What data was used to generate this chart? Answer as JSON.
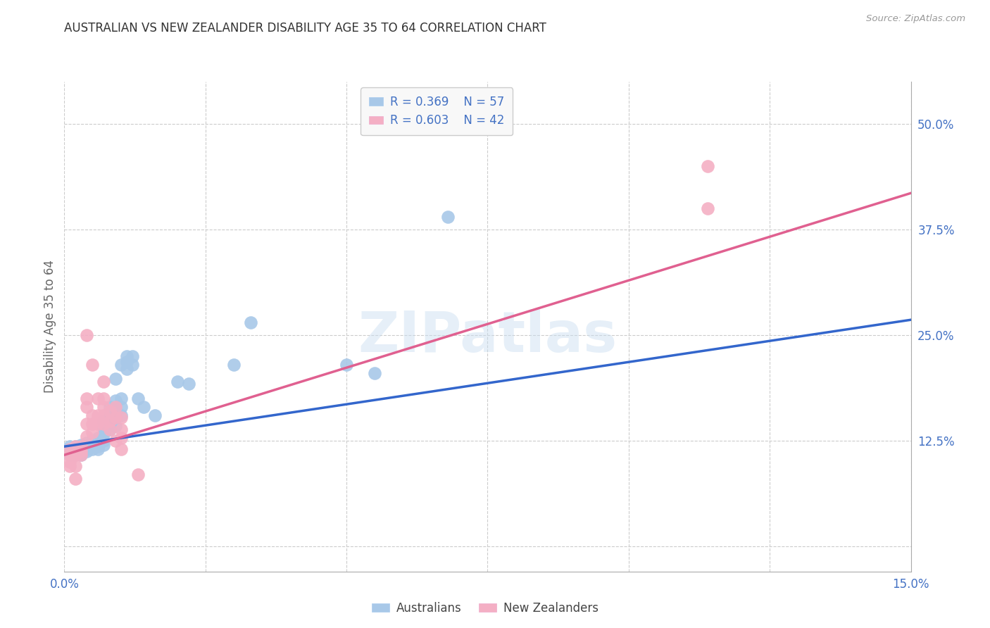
{
  "title": "AUSTRALIAN VS NEW ZEALANDER DISABILITY AGE 35 TO 64 CORRELATION CHART",
  "source": "Source: ZipAtlas.com",
  "ylabel": "Disability Age 35 to 64",
  "xlim": [
    0.0,
    0.15
  ],
  "ylim": [
    -0.03,
    0.55
  ],
  "xticks": [
    0.0,
    0.025,
    0.05,
    0.075,
    0.1,
    0.125,
    0.15
  ],
  "xtick_labels": [
    "0.0%",
    "",
    "",
    "",
    "",
    "",
    "15.0%"
  ],
  "yticks": [
    0.0,
    0.125,
    0.25,
    0.375,
    0.5
  ],
  "ytick_labels": [
    "",
    "12.5%",
    "25.0%",
    "37.5%",
    "50.0%"
  ],
  "legend1_r": "0.369",
  "legend1_n": "57",
  "legend2_r": "0.603",
  "legend2_n": "42",
  "blue_color": "#a8c8e8",
  "pink_color": "#f4afc4",
  "blue_line_color": "#3366cc",
  "pink_line_color": "#e06090",
  "background_color": "#ffffff",
  "grid_color": "#cccccc",
  "title_color": "#333333",
  "axis_label_color": "#4472c4",
  "blue_scatter": [
    [
      0.001,
      0.118
    ],
    [
      0.001,
      0.115
    ],
    [
      0.001,
      0.112
    ],
    [
      0.001,
      0.108
    ],
    [
      0.002,
      0.118
    ],
    [
      0.002,
      0.115
    ],
    [
      0.002,
      0.112
    ],
    [
      0.002,
      0.108
    ],
    [
      0.003,
      0.12
    ],
    [
      0.003,
      0.115
    ],
    [
      0.003,
      0.11
    ],
    [
      0.003,
      0.108
    ],
    [
      0.004,
      0.122
    ],
    [
      0.004,
      0.118
    ],
    [
      0.004,
      0.115
    ],
    [
      0.004,
      0.112
    ],
    [
      0.005,
      0.125
    ],
    [
      0.005,
      0.12
    ],
    [
      0.005,
      0.118
    ],
    [
      0.005,
      0.115
    ],
    [
      0.006,
      0.128
    ],
    [
      0.006,
      0.122
    ],
    [
      0.006,
      0.118
    ],
    [
      0.006,
      0.115
    ],
    [
      0.007,
      0.148
    ],
    [
      0.007,
      0.14
    ],
    [
      0.007,
      0.132
    ],
    [
      0.007,
      0.125
    ],
    [
      0.007,
      0.12
    ],
    [
      0.008,
      0.165
    ],
    [
      0.008,
      0.155
    ],
    [
      0.008,
      0.145
    ],
    [
      0.008,
      0.138
    ],
    [
      0.009,
      0.172
    ],
    [
      0.009,
      0.162
    ],
    [
      0.009,
      0.152
    ],
    [
      0.009,
      0.142
    ],
    [
      0.009,
      0.198
    ],
    [
      0.01,
      0.175
    ],
    [
      0.01,
      0.165
    ],
    [
      0.01,
      0.155
    ],
    [
      0.01,
      0.215
    ],
    [
      0.011,
      0.225
    ],
    [
      0.011,
      0.218
    ],
    [
      0.011,
      0.21
    ],
    [
      0.012,
      0.225
    ],
    [
      0.012,
      0.215
    ],
    [
      0.013,
      0.175
    ],
    [
      0.014,
      0.165
    ],
    [
      0.016,
      0.155
    ],
    [
      0.02,
      0.195
    ],
    [
      0.022,
      0.192
    ],
    [
      0.03,
      0.215
    ],
    [
      0.033,
      0.265
    ],
    [
      0.05,
      0.215
    ],
    [
      0.055,
      0.205
    ],
    [
      0.068,
      0.39
    ]
  ],
  "pink_scatter": [
    [
      0.001,
      0.115
    ],
    [
      0.001,
      0.108
    ],
    [
      0.001,
      0.1
    ],
    [
      0.001,
      0.095
    ],
    [
      0.002,
      0.118
    ],
    [
      0.002,
      0.112
    ],
    [
      0.002,
      0.108
    ],
    [
      0.002,
      0.095
    ],
    [
      0.002,
      0.08
    ],
    [
      0.003,
      0.118
    ],
    [
      0.003,
      0.112
    ],
    [
      0.003,
      0.108
    ],
    [
      0.004,
      0.25
    ],
    [
      0.004,
      0.175
    ],
    [
      0.004,
      0.165
    ],
    [
      0.004,
      0.145
    ],
    [
      0.004,
      0.13
    ],
    [
      0.005,
      0.215
    ],
    [
      0.005,
      0.155
    ],
    [
      0.005,
      0.145
    ],
    [
      0.005,
      0.135
    ],
    [
      0.006,
      0.175
    ],
    [
      0.006,
      0.155
    ],
    [
      0.006,
      0.145
    ],
    [
      0.007,
      0.195
    ],
    [
      0.007,
      0.175
    ],
    [
      0.007,
      0.165
    ],
    [
      0.007,
      0.155
    ],
    [
      0.007,
      0.145
    ],
    [
      0.008,
      0.16
    ],
    [
      0.008,
      0.148
    ],
    [
      0.008,
      0.138
    ],
    [
      0.009,
      0.165
    ],
    [
      0.009,
      0.152
    ],
    [
      0.009,
      0.125
    ],
    [
      0.01,
      0.152
    ],
    [
      0.01,
      0.138
    ],
    [
      0.01,
      0.128
    ],
    [
      0.01,
      0.115
    ],
    [
      0.013,
      0.085
    ],
    [
      0.114,
      0.45
    ],
    [
      0.114,
      0.4
    ]
  ],
  "blue_trendline": [
    [
      0.0,
      0.118
    ],
    [
      0.15,
      0.268
    ]
  ],
  "pink_trendline": [
    [
      0.0,
      0.108
    ],
    [
      0.15,
      0.418
    ]
  ]
}
